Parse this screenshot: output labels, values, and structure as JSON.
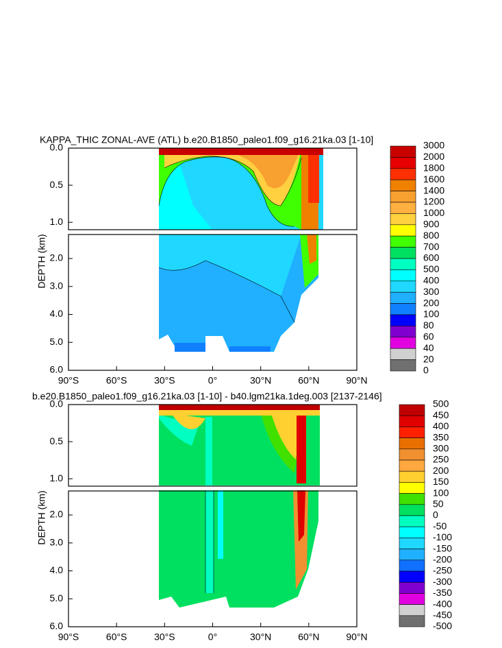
{
  "chart_data": [
    {
      "type": "contour",
      "title": "KAPPA_THIC ZONAL-AVE (ATL) b.e20.B1850_paleo1.f09_g16.21ka.03 [1-10]",
      "y_label": "DEPTH (km)",
      "xlim": [
        -90,
        90
      ],
      "xticks": [
        {
          "value": -90,
          "label": "90°S"
        },
        {
          "value": -60,
          "label": "60°S"
        },
        {
          "value": -30,
          "label": "30°S"
        },
        {
          "value": 0,
          "label": "0°"
        },
        {
          "value": 30,
          "label": "30°N"
        },
        {
          "value": 60,
          "label": "60°N"
        },
        {
          "value": 90,
          "label": "90°N"
        }
      ],
      "ylim_upper": [
        0,
        1.1
      ],
      "ylim_lower": [
        1.14,
        6
      ],
      "yticks": [
        {
          "value": 0,
          "label": "0.0"
        },
        0.5,
        {
          "value": 1,
          "label": "1.0"
        },
        {
          "value": 2,
          "label": "2.0"
        },
        {
          "value": 3,
          "label": "3.0"
        },
        {
          "value": 4,
          "label": "4.0"
        },
        {
          "value": 5,
          "label": "5.0"
        },
        {
          "value": 6,
          "label": "6.0"
        }
      ],
      "colorbar": {
        "levels": [
          3000,
          2000,
          1800,
          1600,
          1400,
          1200,
          1000,
          900,
          800,
          700,
          600,
          500,
          400,
          300,
          200,
          100,
          80,
          60,
          40,
          20,
          0
        ],
        "colors": [
          "#c80000",
          "#e60000",
          "#ff3000",
          "#f08000",
          "#f8a030",
          "#ffb040",
          "#ffd040",
          "#ffff00",
          "#40ff00",
          "#00e060",
          "#00ffc0",
          "#00ffff",
          "#20d8ff",
          "#20b0ff",
          "#1080ff",
          "#0000ff",
          "#8000d0",
          "#e000e0",
          "#d0d0d0",
          "#707070"
        ]
      }
    },
    {
      "type": "contour",
      "title": "b.e20.B1850_paleo1.f09_g16.21ka.03 [1-10] - b40.lgm21ka.1deg.003 [2137-2146]",
      "y_label": "DEPTH (km)",
      "xlim": [
        -90,
        90
      ],
      "xticks": [
        {
          "value": -90,
          "label": "90°S"
        },
        {
          "value": -60,
          "label": "60°S"
        },
        {
          "value": -30,
          "label": "30°S"
        },
        {
          "value": 0,
          "label": "0°"
        },
        {
          "value": 30,
          "label": "30°N"
        },
        {
          "value": 60,
          "label": "60°N"
        },
        {
          "value": 90,
          "label": "90°N"
        }
      ],
      "ylim_upper": [
        0,
        1.1
      ],
      "ylim_lower": [
        1.14,
        6
      ],
      "yticks": [
        {
          "value": 0,
          "label": "0.0"
        },
        0.5,
        {
          "value": 1,
          "label": "1.0"
        },
        {
          "value": 2,
          "label": "2.0"
        },
        {
          "value": 3,
          "label": "3.0"
        },
        {
          "value": 4,
          "label": "4.0"
        },
        {
          "value": 5,
          "label": "5.0"
        },
        {
          "value": 6,
          "label": "6.0"
        }
      ],
      "colorbar": {
        "levels": [
          500,
          450,
          400,
          350,
          300,
          250,
          200,
          150,
          100,
          50,
          0,
          -50,
          -100,
          -150,
          -200,
          -250,
          -300,
          -350,
          -400,
          -450,
          -500
        ],
        "colors": [
          "#c00000",
          "#e00000",
          "#ff2000",
          "#e87000",
          "#f09030",
          "#ffa840",
          "#ffd030",
          "#ffff00",
          "#40e000",
          "#00e060",
          "#00ffc0",
          "#00ffff",
          "#20d8ff",
          "#20b0ff",
          "#1070ff",
          "#0000ff",
          "#8000d0",
          "#e000e0",
          "#d0d0d0",
          "#707070"
        ]
      }
    }
  ]
}
